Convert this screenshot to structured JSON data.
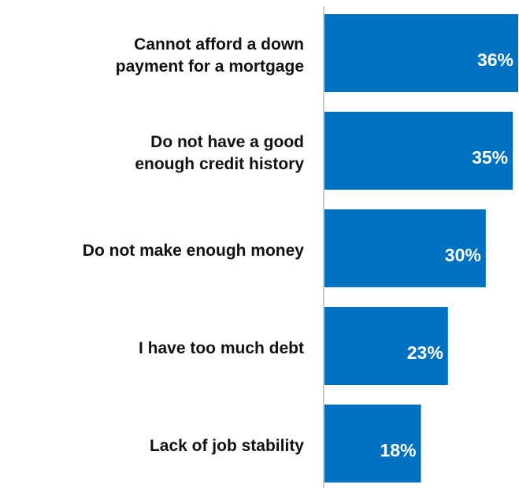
{
  "colors": {
    "bar": "#0070C0",
    "axis": "#999999",
    "label": "#111111",
    "value_text": "#ffffff"
  },
  "chart_data": {
    "type": "bar",
    "orientation": "horizontal",
    "categories": [
      "Cannot afford a down\npayment for a mortgage",
      "Do not have a good\nenough credit history",
      "Do not make enough money",
      "I have too much debt",
      "Lack of job stability"
    ],
    "values": [
      36,
      35,
      30,
      23,
      18
    ],
    "value_labels": [
      "36%",
      "35%",
      "30%",
      "23%",
      "18%"
    ],
    "xlim": [
      0,
      36
    ],
    "grid": false,
    "legend": "none"
  }
}
